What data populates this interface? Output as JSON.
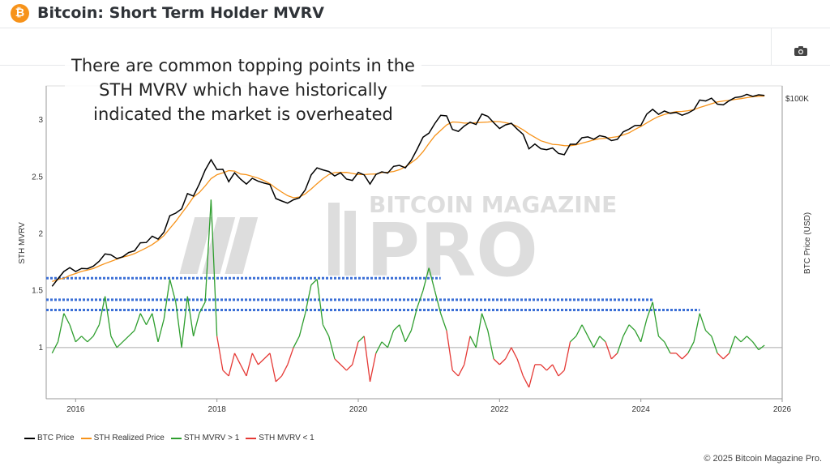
{
  "header": {
    "title": "Bitcoin: Short Term Holder MVRV",
    "logo_glyph": "₿"
  },
  "annotation": "There are common topping points in the STH MVRV which have historically indicated the market is overheated",
  "watermark": {
    "line1": "BITCOIN MAGAZINE",
    "line2": "PRO"
  },
  "copyright": "© 2025 Bitcoin Magazine Pro.",
  "colors": {
    "btc": "#000000",
    "realized": "#f7931a",
    "above": "#2e9e2e",
    "below": "#e53935",
    "dotted": "#3b6fd6"
  },
  "chart_data": {
    "type": "line",
    "ylabel": "STH MVRV",
    "y2label": "BTC Price (USD)",
    "ylim": [
      0.55,
      3.3
    ],
    "y2scale": "log",
    "y2ticks": [
      "$100K"
    ],
    "yticks": [
      "1",
      "1.5",
      "2",
      "2.5",
      "3"
    ],
    "xticks": [
      "2016",
      "2018",
      "2020",
      "2022",
      "2024",
      "2026"
    ],
    "xlim": [
      "2015-08",
      "2026-01"
    ],
    "legend": [
      "BTC Price",
      "STH Realized Price",
      "STH MVRV > 1",
      "STH MVRV < 1"
    ],
    "legend_placement": "bottom-left",
    "reference_line": 1,
    "highlight_levels": [
      1.61,
      1.42,
      1.33
    ],
    "start_month": "2015-09",
    "btc_price": [
      235,
      300,
      380,
      430,
      380,
      420,
      415,
      450,
      530,
      670,
      650,
      575,
      610,
      700,
      740,
      960,
      970,
      1190,
      1080,
      1350,
      2300,
      2500,
      2870,
      4700,
      4340,
      6400,
      10000,
      14000,
      10200,
      10300,
      6900,
      9200,
      7500,
      6400,
      7700,
      7000,
      6600,
      6300,
      4000,
      3700,
      3450,
      3850,
      4100,
      5300,
      8600,
      10800,
      10100,
      9600,
      8300,
      9200,
      7500,
      7200,
      9300,
      8600,
      6400,
      8700,
      9500,
      9100,
      11300,
      11700,
      10800,
      13800,
      19700,
      29000,
      33100,
      45000,
      58800,
      57700,
      37300,
      35000,
      41500,
      47100,
      43800,
      61300,
      57000,
      46300,
      38500,
      43200,
      45500,
      37700,
      31800,
      19900,
      23300,
      20000,
      19400,
      20500,
      17200,
      16500,
      23100,
      23100,
      28500,
      29300,
      27200,
      30500,
      29200,
      26000,
      27000,
      34500,
      37700,
      42300,
      42600,
      61200,
      71300,
      60600,
      67500,
      62700,
      64600,
      59000,
      63300,
      70200,
      96400,
      93400,
      102400,
      84400,
      82500,
      94200,
      104600,
      107100,
      115800,
      108200,
      114000,
      112000
    ],
    "sth_mvrv": [
      0.95,
      1.05,
      1.3,
      1.2,
      1.05,
      1.1,
      1.05,
      1.1,
      1.2,
      1.45,
      1.1,
      1.0,
      1.05,
      1.1,
      1.15,
      1.3,
      1.2,
      1.3,
      1.05,
      1.25,
      1.6,
      1.4,
      1.0,
      1.45,
      1.1,
      1.3,
      1.4,
      2.3,
      1.1,
      0.8,
      0.75,
      0.95,
      0.85,
      0.75,
      0.95,
      0.85,
      0.9,
      0.95,
      0.7,
      0.75,
      0.85,
      1.0,
      1.1,
      1.3,
      1.55,
      1.6,
      1.2,
      1.1,
      0.9,
      0.85,
      0.8,
      0.85,
      1.05,
      1.1,
      0.7,
      0.95,
      1.05,
      1.0,
      1.15,
      1.2,
      1.05,
      1.15,
      1.35,
      1.5,
      1.7,
      1.5,
      1.3,
      1.15,
      0.8,
      0.75,
      0.85,
      1.1,
      1.0,
      1.3,
      1.15,
      0.9,
      0.85,
      0.9,
      1.0,
      0.9,
      0.75,
      0.65,
      0.85,
      0.85,
      0.8,
      0.85,
      0.75,
      0.8,
      1.05,
      1.1,
      1.2,
      1.1,
      1.0,
      1.1,
      1.05,
      0.9,
      0.95,
      1.1,
      1.2,
      1.15,
      1.05,
      1.25,
      1.4,
      1.1,
      1.05,
      0.95,
      0.95,
      0.9,
      0.95,
      1.05,
      1.3,
      1.15,
      1.1,
      0.95,
      0.9,
      0.95,
      1.1,
      1.05,
      1.1,
      1.05,
      0.98,
      1.02
    ]
  }
}
